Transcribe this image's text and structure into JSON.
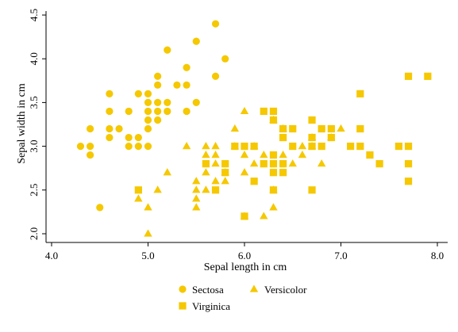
{
  "chart_data": {
    "type": "scatter",
    "xlabel": "Sepal length in cm",
    "ylabel": "Sepal width in cm",
    "xlim": [
      4.0,
      8.0
    ],
    "ylim": [
      2.0,
      4.5
    ],
    "x_ticks": [
      4.0,
      5.0,
      6.0,
      7.0,
      8.0
    ],
    "x_tick_labels": [
      "4.0",
      "5.0",
      "6.0",
      "7.0",
      "8.0"
    ],
    "y_ticks": [
      2.0,
      2.5,
      3.0,
      3.5,
      4.0,
      4.5
    ],
    "y_tick_labels": [
      "2.0",
      "2.5",
      "3.0",
      "3.5",
      "4.0",
      "4.5"
    ],
    "grid": false,
    "legend_position": "bottom",
    "marker_color": "#f5c800",
    "series": [
      {
        "name": "Sectosa",
        "marker": "circle",
        "points": [
          [
            4.3,
            3.0
          ],
          [
            4.4,
            2.9
          ],
          [
            4.4,
            3.0
          ],
          [
            4.4,
            3.2
          ],
          [
            4.5,
            2.3
          ],
          [
            4.6,
            3.1
          ],
          [
            4.6,
            3.2
          ],
          [
            4.6,
            3.4
          ],
          [
            4.6,
            3.6
          ],
          [
            4.7,
            3.2
          ],
          [
            4.8,
            3.0
          ],
          [
            4.8,
            3.1
          ],
          [
            4.8,
            3.4
          ],
          [
            4.9,
            3.0
          ],
          [
            4.9,
            3.1
          ],
          [
            4.9,
            3.6
          ],
          [
            5.0,
            3.0
          ],
          [
            5.0,
            3.2
          ],
          [
            5.0,
            3.3
          ],
          [
            5.0,
            3.4
          ],
          [
            5.0,
            3.5
          ],
          [
            5.0,
            3.6
          ],
          [
            5.1,
            3.3
          ],
          [
            5.1,
            3.4
          ],
          [
            5.1,
            3.5
          ],
          [
            5.1,
            3.7
          ],
          [
            5.1,
            3.8
          ],
          [
            5.2,
            3.4
          ],
          [
            5.2,
            3.5
          ],
          [
            5.2,
            4.1
          ],
          [
            5.3,
            3.7
          ],
          [
            5.4,
            3.4
          ],
          [
            5.4,
            3.7
          ],
          [
            5.4,
            3.9
          ],
          [
            5.5,
            3.5
          ],
          [
            5.5,
            4.2
          ],
          [
            5.7,
            3.8
          ],
          [
            5.7,
            4.4
          ],
          [
            5.8,
            4.0
          ]
        ]
      },
      {
        "name": "Versicolor",
        "marker": "triangle",
        "points": [
          [
            4.9,
            2.4
          ],
          [
            5.0,
            2.0
          ],
          [
            5.0,
            2.3
          ],
          [
            5.1,
            2.5
          ],
          [
            5.2,
            2.7
          ],
          [
            5.4,
            3.0
          ],
          [
            5.5,
            2.3
          ],
          [
            5.5,
            2.4
          ],
          [
            5.5,
            2.5
          ],
          [
            5.5,
            2.6
          ],
          [
            5.6,
            2.5
          ],
          [
            5.6,
            2.7
          ],
          [
            5.6,
            2.9
          ],
          [
            5.6,
            3.0
          ],
          [
            5.7,
            2.6
          ],
          [
            5.7,
            2.8
          ],
          [
            5.7,
            2.9
          ],
          [
            5.7,
            3.0
          ],
          [
            5.8,
            2.6
          ],
          [
            5.8,
            2.7
          ],
          [
            5.9,
            3.0
          ],
          [
            5.9,
            3.2
          ],
          [
            6.0,
            2.2
          ],
          [
            6.0,
            2.7
          ],
          [
            6.0,
            2.9
          ],
          [
            6.0,
            3.4
          ],
          [
            6.1,
            2.8
          ],
          [
            6.1,
            3.0
          ],
          [
            6.2,
            2.2
          ],
          [
            6.2,
            2.9
          ],
          [
            6.3,
            2.3
          ],
          [
            6.3,
            2.5
          ],
          [
            6.3,
            3.3
          ],
          [
            6.4,
            2.9
          ],
          [
            6.4,
            3.2
          ],
          [
            6.5,
            2.8
          ],
          [
            6.6,
            2.9
          ],
          [
            6.6,
            3.0
          ],
          [
            6.7,
            3.0
          ],
          [
            6.7,
            3.1
          ],
          [
            6.8,
            2.8
          ],
          [
            6.9,
            3.1
          ],
          [
            7.0,
            3.2
          ]
        ]
      },
      {
        "name": "Virginica",
        "marker": "square",
        "points": [
          [
            4.9,
            2.5
          ],
          [
            5.6,
            2.8
          ],
          [
            5.7,
            2.5
          ],
          [
            5.8,
            2.7
          ],
          [
            5.8,
            2.8
          ],
          [
            5.9,
            3.0
          ],
          [
            6.0,
            2.2
          ],
          [
            6.0,
            3.0
          ],
          [
            6.1,
            2.6
          ],
          [
            6.1,
            3.0
          ],
          [
            6.2,
            2.8
          ],
          [
            6.2,
            3.4
          ],
          [
            6.3,
            2.5
          ],
          [
            6.3,
            2.7
          ],
          [
            6.3,
            2.8
          ],
          [
            6.3,
            2.9
          ],
          [
            6.3,
            3.3
          ],
          [
            6.3,
            3.4
          ],
          [
            6.4,
            2.7
          ],
          [
            6.4,
            2.8
          ],
          [
            6.4,
            3.1
          ],
          [
            6.4,
            3.2
          ],
          [
            6.5,
            3.0
          ],
          [
            6.5,
            3.2
          ],
          [
            6.7,
            2.5
          ],
          [
            6.7,
            3.0
          ],
          [
            6.7,
            3.1
          ],
          [
            6.7,
            3.3
          ],
          [
            6.8,
            3.0
          ],
          [
            6.8,
            3.2
          ],
          [
            6.9,
            3.1
          ],
          [
            6.9,
            3.2
          ],
          [
            7.1,
            3.0
          ],
          [
            7.2,
            3.0
          ],
          [
            7.2,
            3.2
          ],
          [
            7.2,
            3.6
          ],
          [
            7.3,
            2.9
          ],
          [
            7.4,
            2.8
          ],
          [
            7.6,
            3.0
          ],
          [
            7.7,
            2.6
          ],
          [
            7.7,
            2.8
          ],
          [
            7.7,
            3.0
          ],
          [
            7.7,
            3.8
          ],
          [
            7.9,
            3.8
          ]
        ]
      }
    ]
  }
}
